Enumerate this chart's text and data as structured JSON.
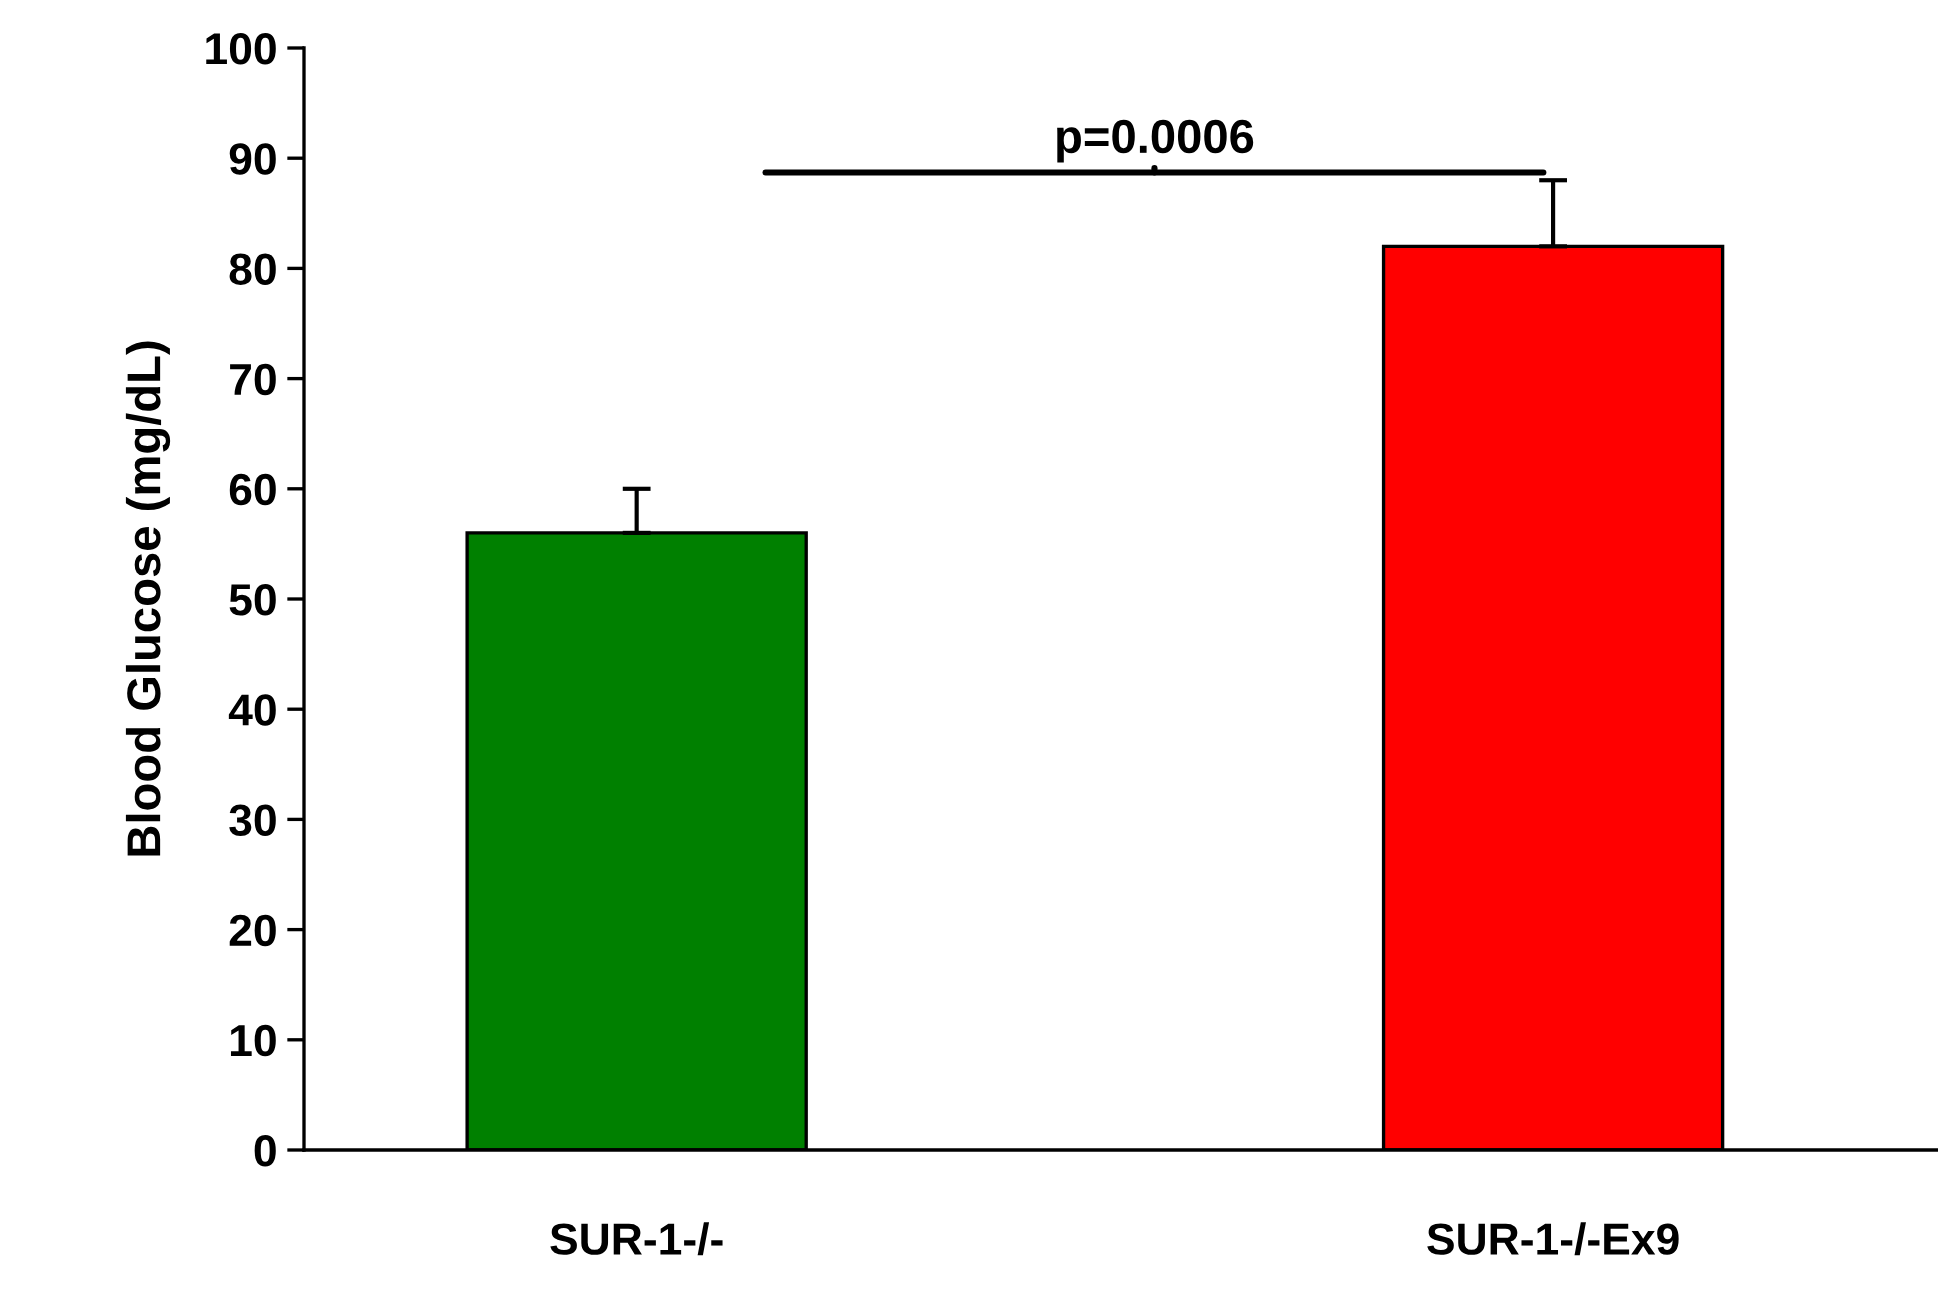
{
  "chart_data": {
    "type": "bar",
    "ylabel": "Blood Glucose (mg/dL)",
    "categories": [
      "SUR-1-/-",
      "SUR-1-/-Ex9"
    ],
    "values": [
      56,
      82
    ],
    "colors": [
      "#008000",
      "#ff0000"
    ],
    "errors": [
      [
        56,
        60
      ],
      [
        82,
        88
      ]
    ],
    "ylim": [
      0,
      100
    ],
    "yticks": [
      0,
      10,
      20,
      30,
      40,
      50,
      60,
      70,
      80,
      90,
      100
    ],
    "grid": false,
    "legend": false,
    "annotations": [
      "p=0.0006"
    ]
  }
}
